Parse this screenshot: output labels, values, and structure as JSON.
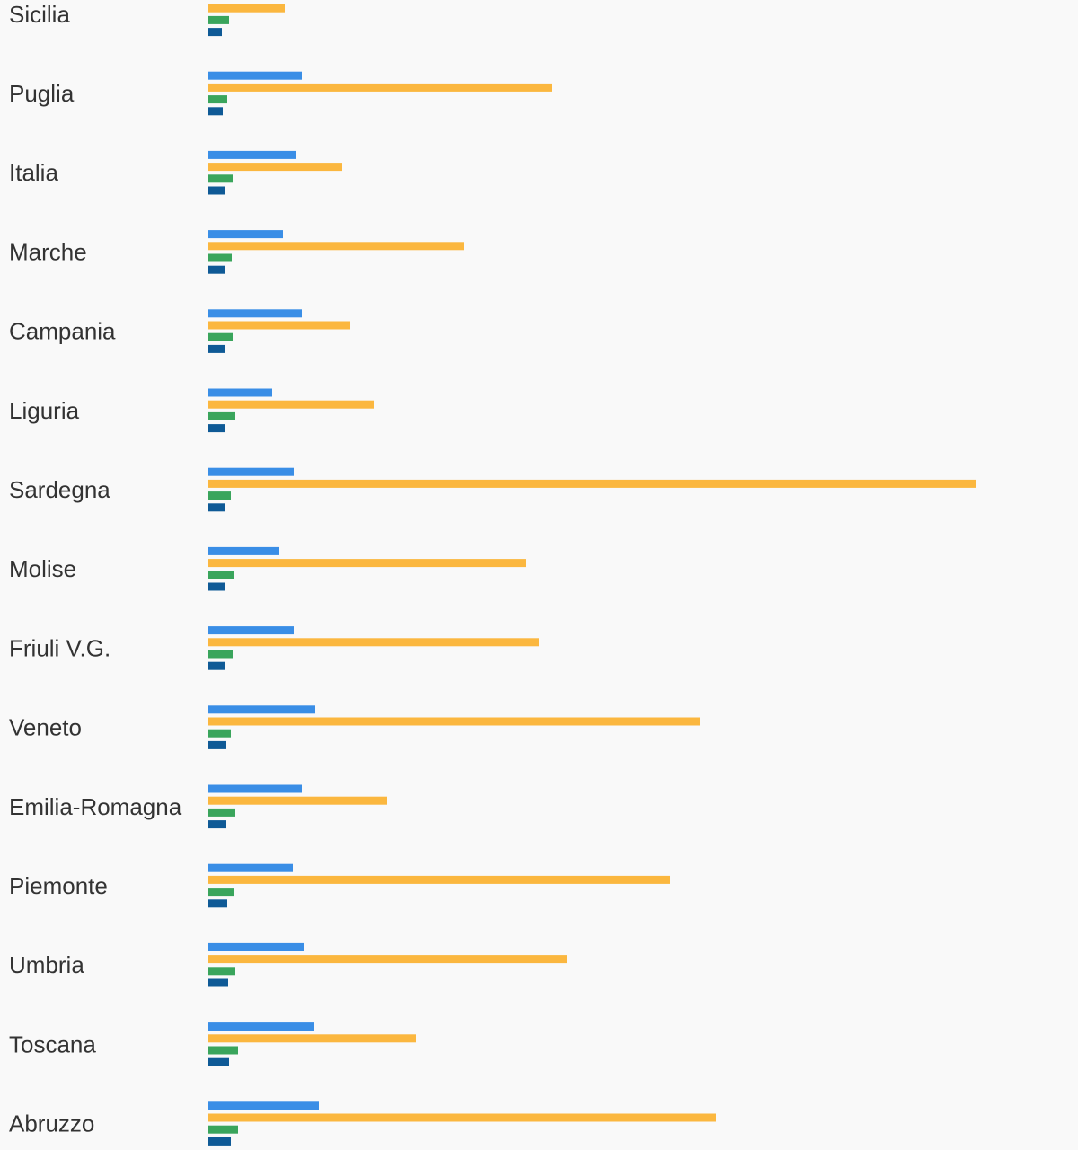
{
  "chart_data": {
    "type": "bar",
    "orientation": "horizontal",
    "categories": [
      "Sicilia",
      "Puglia",
      "Italia",
      "Marche",
      "Campania",
      "Liguria",
      "Sardegna",
      "Molise",
      "Friuli V.G.",
      "Veneto",
      "Emilia-Romagna",
      "Piemonte",
      "Umbria",
      "Toscana",
      "Abruzzo"
    ],
    "series": [
      {
        "color": "#3a8ee6",
        "values": [
          null,
          104,
          97,
          83,
          104,
          71,
          95,
          79,
          95,
          119,
          104,
          94,
          106,
          118,
          123
        ]
      },
      {
        "color": "#fbb73f",
        "values": [
          85,
          382,
          149,
          285,
          158,
          184,
          854,
          353,
          368,
          547,
          199,
          514,
          399,
          231,
          565
        ]
      },
      {
        "color": "#3aa55c",
        "values": [
          23,
          21,
          27,
          26,
          27,
          30,
          25,
          28,
          27,
          25,
          30,
          29,
          30,
          33,
          33
        ]
      },
      {
        "color": "#0f5a96",
        "values": [
          15,
          16,
          18,
          18,
          18,
          18,
          19,
          19,
          19,
          20,
          20,
          21,
          22,
          23,
          25
        ]
      }
    ],
    "title": "",
    "xlabel": "",
    "ylabel": "",
    "grid": false,
    "legend": "none"
  }
}
